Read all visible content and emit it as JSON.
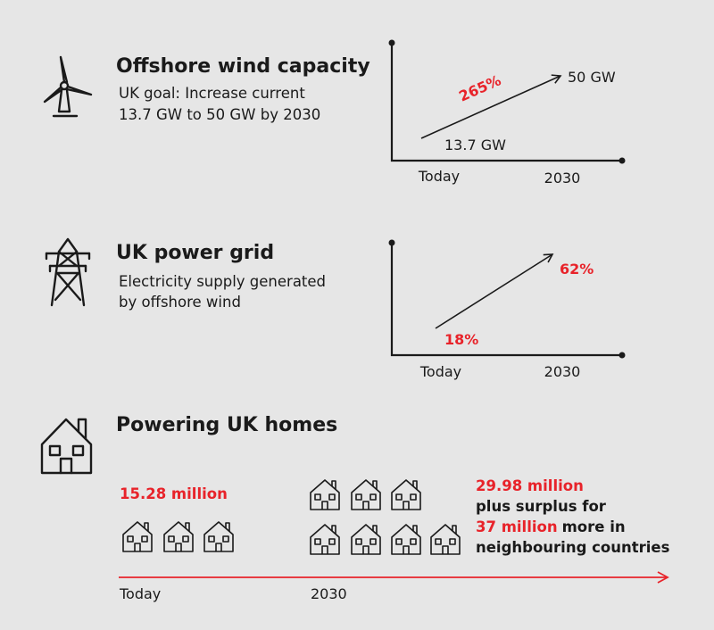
{
  "sections": [
    {
      "title": "Offshore wind capacity",
      "description": [
        "UK goal: Increase current",
        "13.7 GW to 50 GW by 2030"
      ],
      "chart": {
        "change": "265%",
        "start": "13.7 GW",
        "end": "50 GW",
        "x_labels": [
          "Today",
          "2030"
        ]
      }
    },
    {
      "title": "UK power grid",
      "description": [
        "Electricity supply generated",
        "by offshore wind"
      ],
      "chart": {
        "start": "18%",
        "end": "62%",
        "x_labels": [
          "Today",
          "2030"
        ]
      }
    }
  ],
  "homes": {
    "title": "Powering UK homes",
    "today_label": "15.28 million",
    "future_label": "29.98 million",
    "surplus_intro": "plus surplus for",
    "surplus_value": "37 million",
    "surplus_suffix": "more in",
    "surplus_end": "neighbouring countries",
    "x_labels": [
      "Today",
      "2030"
    ]
  }
}
